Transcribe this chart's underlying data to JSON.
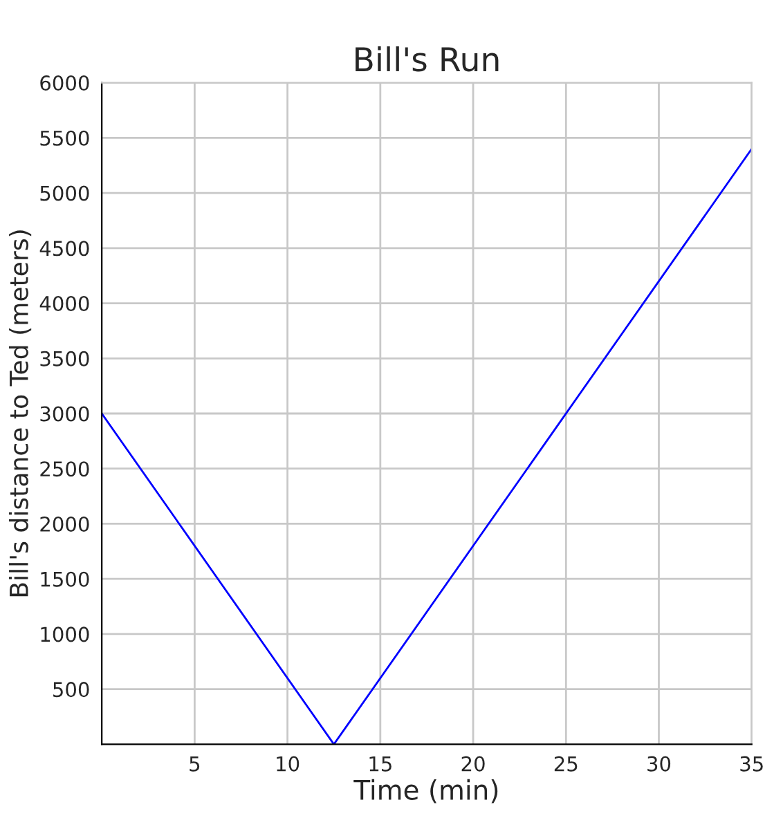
{
  "chart_data": {
    "type": "line",
    "title": "Bill's Run",
    "xlabel": "Time (min)",
    "ylabel": "Bill's distance to Ted (meters)",
    "x": [
      0,
      12.5,
      35
    ],
    "series": [
      {
        "color": "#0000ff",
        "values": [
          3000,
          0,
          5400
        ]
      }
    ],
    "xlim": [
      0,
      35
    ],
    "xticks": [
      5,
      10,
      15,
      20,
      25,
      30,
      35
    ],
    "ylim": [
      0,
      6000
    ],
    "yticks": [
      500,
      1000,
      1500,
      2000,
      2500,
      3000,
      3500,
      4000,
      4500,
      5000,
      5500,
      6000
    ],
    "grid": true,
    "marker": "none",
    "line_style": "solid"
  }
}
